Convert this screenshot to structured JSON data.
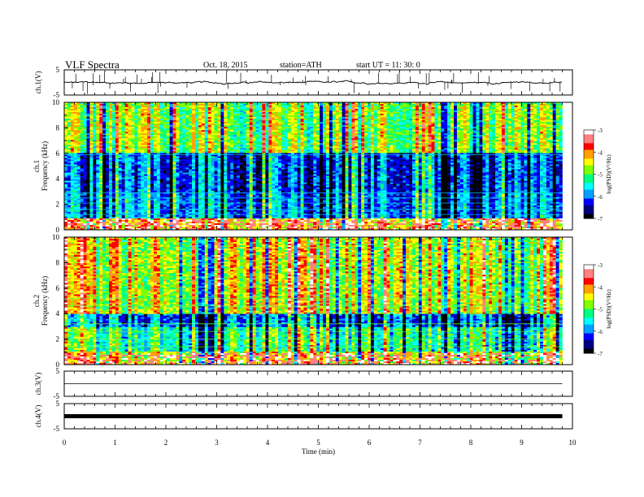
{
  "header": {
    "title": "VLF  Spectra",
    "date": "Oct. 18, 2015",
    "station": "station=ATH",
    "start": "start  UT =   11: 30: 0"
  },
  "colors": {
    "colormap": [
      "#000000",
      "#000080",
      "#0000ff",
      "#00a0ff",
      "#00ffff",
      "#00ff80",
      "#7fff00",
      "#ffff00",
      "#ffa000",
      "#ff0000",
      "#ff8080",
      "#ffffff"
    ],
    "trace": "#000000"
  },
  "chart_data": [
    {
      "type": "line",
      "ylabel": "ch.1(V)",
      "ylim": [
        -5,
        5
      ],
      "yticks": [
        "5",
        "-5"
      ],
      "xlim": [
        0,
        10
      ],
      "description_level": -0.1
    },
    {
      "type": "heatmap",
      "ylabel": "Frequency (kHz)",
      "ylabel2": "ch.1",
      "ylim": [
        0,
        10
      ],
      "yticks": [
        "0",
        "2",
        "4",
        "6",
        "8",
        "10"
      ],
      "xlim": [
        0,
        10
      ],
      "data_end_min": 9.8,
      "colorbar": {
        "label": "log(PSD)(V²/Hz)",
        "ticks": [
          "-3",
          "-4",
          "-5",
          "-6",
          "-7"
        ],
        "range": [
          -7,
          -3
        ]
      }
    },
    {
      "type": "heatmap",
      "ylabel": "Frequency (kHz)",
      "ylabel2": "ch.2",
      "ylim": [
        0,
        10
      ],
      "yticks": [
        "0",
        "2",
        "4",
        "6",
        "8",
        "10"
      ],
      "xlim": [
        0,
        10
      ],
      "data_end_min": 9.8,
      "colorbar": {
        "label": "log(PSD)(V²/Hz)",
        "ticks": [
          "-3",
          "-4",
          "-5",
          "-6",
          "-7"
        ],
        "range": [
          -7,
          -3
        ]
      }
    },
    {
      "type": "line",
      "ylabel": "ch.3(V)",
      "ylim": [
        -5,
        5
      ],
      "yticks": [
        "5",
        "-5"
      ],
      "xlim": [
        0,
        10
      ],
      "level": 0
    },
    {
      "type": "line",
      "ylabel": "ch.4(V)",
      "ylim": [
        -5,
        5
      ],
      "yticks": [
        "5",
        "-5"
      ],
      "xlim": [
        0,
        10
      ],
      "level": 0,
      "xlabel": "Time  (min)",
      "xticks": [
        "0",
        "1",
        "2",
        "3",
        "4",
        "5",
        "6",
        "7",
        "8",
        "9",
        "10"
      ]
    }
  ]
}
